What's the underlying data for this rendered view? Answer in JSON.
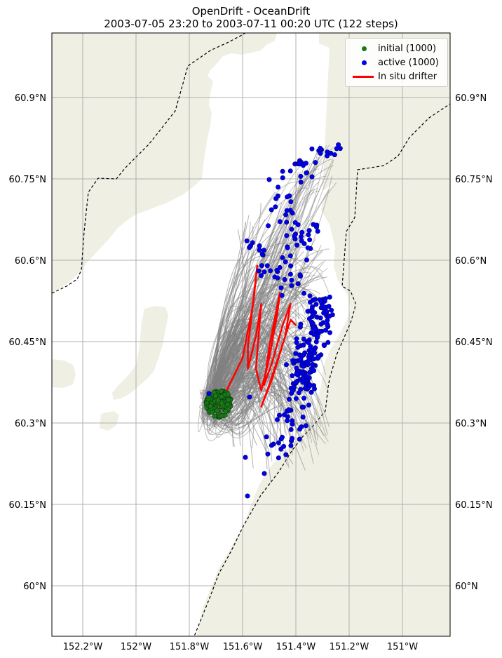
{
  "title": {
    "line1": "OpenDrift - OceanDrift",
    "line2": "2003-07-05 23:20 to 2003-07-11 00:20 UTC (122 steps)"
  },
  "map": {
    "lon_range": [
      -152.3,
      -150.8
    ],
    "lat_range": [
      59.96,
      61.08
    ],
    "land_color": "#efefe4",
    "water_color": "#ffffff",
    "gridlines": true,
    "x_ticks": [
      {
        "value": -152.2,
        "label": "152.2°W"
      },
      {
        "value": -152.0,
        "label": "152°W"
      },
      {
        "value": -151.8,
        "label": "151.8°W"
      },
      {
        "value": -151.6,
        "label": "151.6°W"
      },
      {
        "value": -151.4,
        "label": "151.4°W"
      },
      {
        "value": -151.2,
        "label": "151.2°W"
      },
      {
        "value": -151.0,
        "label": "151°W"
      }
    ],
    "y_ticks": [
      {
        "value": 60.0,
        "label": "60°N"
      },
      {
        "value": 60.15,
        "label": "60.15°N"
      },
      {
        "value": 60.3,
        "label": "60.3°N"
      },
      {
        "value": 60.45,
        "label": "60.45°N"
      },
      {
        "value": 60.6,
        "label": "60.6°N"
      },
      {
        "value": 60.75,
        "label": "60.75°N"
      },
      {
        "value": 60.9,
        "label": "60.9°N"
      }
    ]
  },
  "legend": {
    "placement": "top-right",
    "items": [
      {
        "label": "initial (1000)",
        "color": "#1a7a1a"
      },
      {
        "label": "active (1000)",
        "color": "#0000ee"
      },
      {
        "label": "In situ drifter",
        "color": "#ff0000"
      }
    ]
  },
  "colors": {
    "trajectory": "#808080",
    "initial": "#1a7a1a",
    "active": "#0000ee",
    "drifter": "#ff0000",
    "boundary": "#000000"
  },
  "drifter_track": [
    [
      -151.69,
      60.33
    ],
    [
      -151.6,
      60.42
    ],
    [
      -151.56,
      60.52
    ],
    [
      -151.545,
      60.59
    ],
    [
      -151.58,
      60.44
    ],
    [
      -151.58,
      60.4
    ],
    [
      -151.55,
      60.46
    ],
    [
      -151.53,
      60.52
    ],
    [
      -151.55,
      60.4
    ],
    [
      -151.53,
      60.36
    ],
    [
      -151.5,
      60.42
    ],
    [
      -151.47,
      60.5
    ],
    [
      -151.46,
      60.54
    ],
    [
      -151.5,
      60.44
    ],
    [
      -151.52,
      60.37
    ],
    [
      -151.49,
      60.41
    ],
    [
      -151.45,
      60.48
    ],
    [
      -151.42,
      60.52
    ],
    [
      -151.44,
      60.46
    ],
    [
      -151.49,
      60.38
    ],
    [
      -151.53,
      60.33
    ],
    [
      -151.5,
      60.37
    ],
    [
      -151.46,
      60.43
    ],
    [
      -151.42,
      60.49
    ],
    [
      -151.4,
      60.48
    ]
  ]
}
